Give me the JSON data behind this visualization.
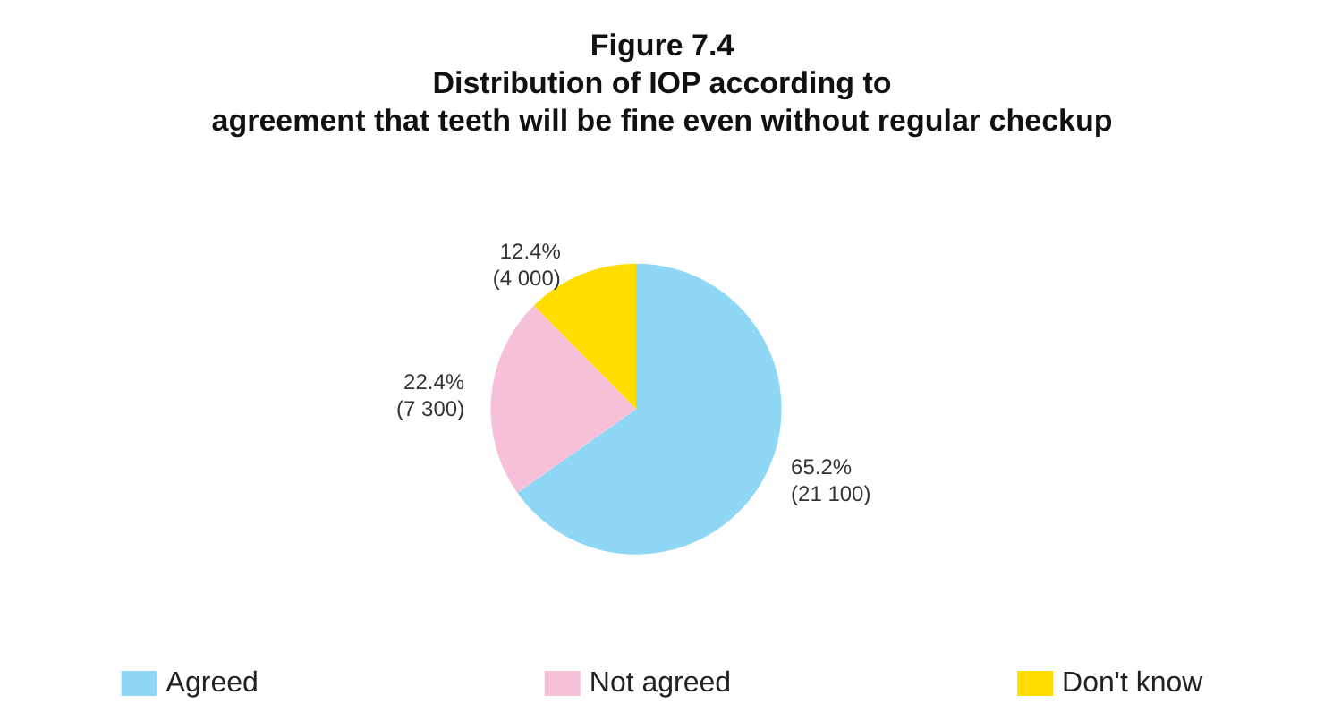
{
  "chart_data": {
    "type": "pie",
    "title": "Figure 7.4\nDistribution of IOP according to\nagreement that teeth will be fine even without regular checkup",
    "categories": [
      "Agreed",
      "Not agreed",
      "Don't know"
    ],
    "values": [
      65.2,
      22.4,
      12.4
    ],
    "value_labels": [
      "65.2%\n(21 100)",
      "22.4%\n(7 300)",
      "12.4%\n(4 000)"
    ],
    "colors": [
      "#8fd8f5",
      "#f7c0d9",
      "#ffdd00"
    ],
    "legend": "bottom"
  }
}
